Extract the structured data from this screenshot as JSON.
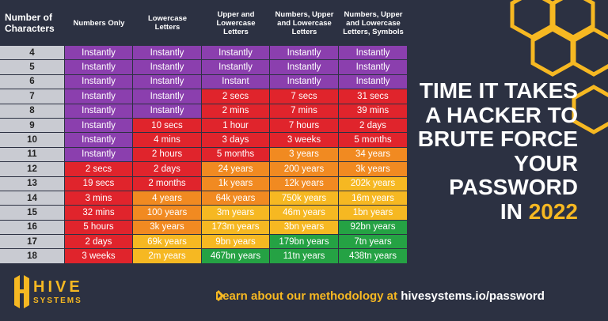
{
  "table": {
    "header": [
      "Number of Characters",
      "Numbers Only",
      "Lowercase Letters",
      "Upper and Lowercase Letters",
      "Numbers, Upper and Lowercase Letters",
      "Numbers, Upper and Lowercase Letters, Symbols"
    ],
    "rows": [
      [
        "4",
        "Instantly",
        "Instantly",
        "Instantly",
        "Instantly",
        "Instantly"
      ],
      [
        "5",
        "Instantly",
        "Instantly",
        "Instantly",
        "Instantly",
        "Instantly"
      ],
      [
        "6",
        "Instantly",
        "Instantly",
        "Instant",
        "Instantly",
        "Instantly"
      ],
      [
        "7",
        "Instantly",
        "Instantly",
        "2 secs",
        "7 secs",
        "31 secs"
      ],
      [
        "8",
        "Instantly",
        "Instantly",
        "2 mins",
        "7 mins",
        "39 mins"
      ],
      [
        "9",
        "Instantly",
        "10 secs",
        "1 hour",
        "7 hours",
        "2 days"
      ],
      [
        "10",
        "Instantly",
        "4 mins",
        "3 days",
        "3 weeks",
        "5 months"
      ],
      [
        "11",
        "Instantly",
        "2 hours",
        "5 months",
        "3 years",
        "34 years"
      ],
      [
        "12",
        "2 secs",
        "2 days",
        "24 years",
        "200 years",
        "3k years"
      ],
      [
        "13",
        "19 secs",
        "2 months",
        "1k years",
        "12k years",
        "202k years"
      ],
      [
        "14",
        "3 mins",
        "4 years",
        "64k years",
        "750k years",
        "16m years"
      ],
      [
        "15",
        "32 mins",
        "100 years",
        "3m years",
        "46m years",
        "1bn years"
      ],
      [
        "16",
        "5 hours",
        "3k years",
        "173m years",
        "3bn years",
        "92bn years"
      ],
      [
        "17",
        "2 days",
        "69k years",
        "9bn years",
        "179bn years",
        "7tn years"
      ],
      [
        "18",
        "3 weeks",
        "2m years",
        "467bn years",
        "11tn years",
        "438tn years"
      ]
    ],
    "colors": [
      [
        "#8b3fae",
        "#8b3fae",
        "#8b3fae",
        "#8b3fae",
        "#8b3fae"
      ],
      [
        "#8b3fae",
        "#8b3fae",
        "#8b3fae",
        "#8b3fae",
        "#8b3fae"
      ],
      [
        "#8b3fae",
        "#8b3fae",
        "#8b3fae",
        "#8b3fae",
        "#8b3fae"
      ],
      [
        "#8b3fae",
        "#8b3fae",
        "#e0242c",
        "#e0242c",
        "#e0242c"
      ],
      [
        "#8b3fae",
        "#8b3fae",
        "#e0242c",
        "#e0242c",
        "#e0242c"
      ],
      [
        "#8b3fae",
        "#e0242c",
        "#e0242c",
        "#e0242c",
        "#e0242c"
      ],
      [
        "#8b3fae",
        "#e0242c",
        "#e0242c",
        "#e0242c",
        "#e0242c"
      ],
      [
        "#8b3fae",
        "#e0242c",
        "#e0242c",
        "#f18a21",
        "#f18a21"
      ],
      [
        "#e0242c",
        "#e0242c",
        "#f18a21",
        "#f18a21",
        "#f18a21"
      ],
      [
        "#e0242c",
        "#e0242c",
        "#f18a21",
        "#f18a21",
        "#f6b822"
      ],
      [
        "#e0242c",
        "#f18a21",
        "#f18a21",
        "#f6b822",
        "#f6b822"
      ],
      [
        "#e0242c",
        "#f18a21",
        "#f6b822",
        "#f6b822",
        "#f6b822"
      ],
      [
        "#e0242c",
        "#f18a21",
        "#f6b822",
        "#f6b822",
        "#25a244"
      ],
      [
        "#e0242c",
        "#f6b822",
        "#f6b822",
        "#25a244",
        "#25a244"
      ],
      [
        "#e0242c",
        "#f6b822",
        "#25a244",
        "#25a244",
        "#25a244"
      ]
    ]
  },
  "headline": {
    "lines": [
      "TIME IT TAKES",
      "A HACKER TO",
      "BRUTE FORCE",
      "YOUR",
      "PASSWORD"
    ],
    "last": "IN",
    "year": "2022"
  },
  "footer": {
    "logo_top": "HIVE",
    "logo_bottom": "SYSTEMS",
    "link_text": "Learn about our methodology at",
    "link_url": "hivesystems.io/password"
  }
}
